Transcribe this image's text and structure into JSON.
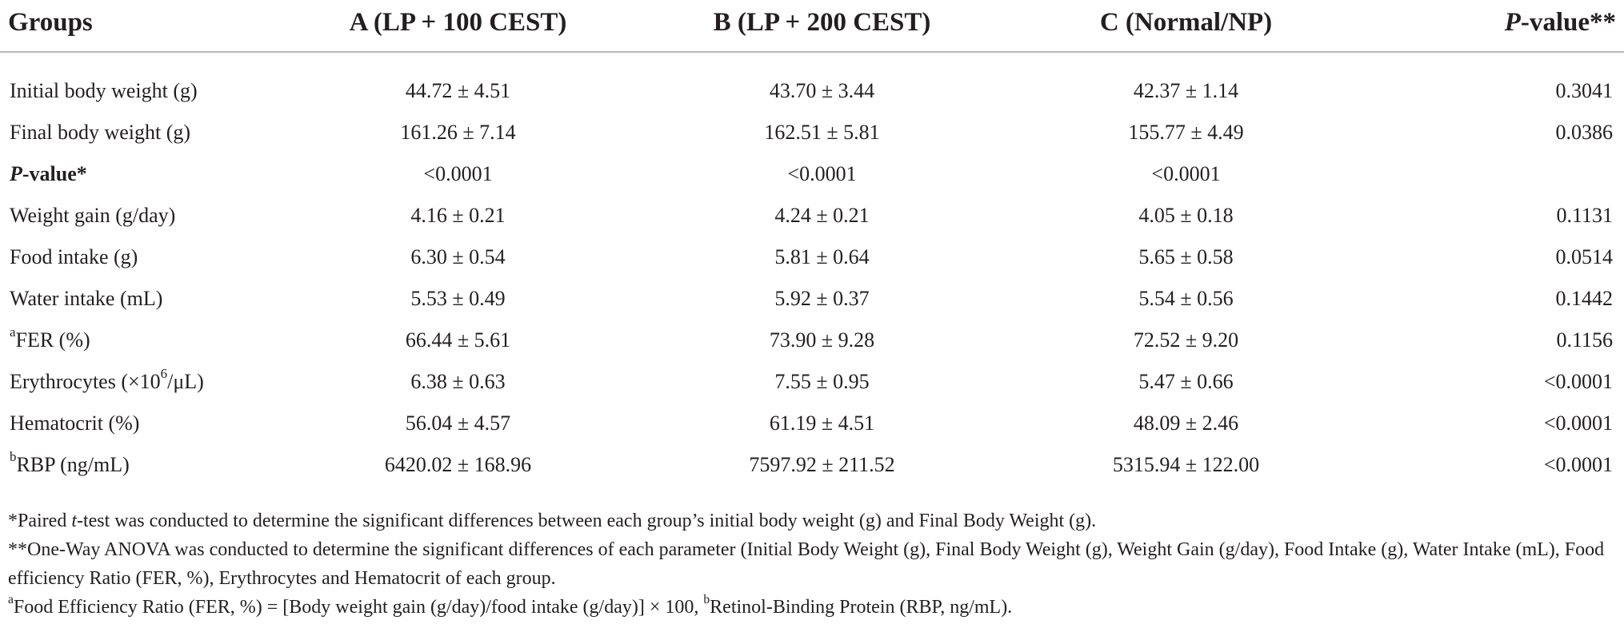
{
  "table": {
    "headers": {
      "groups": "Groups",
      "a": "A (LP + 100 CEST)",
      "b": "B (LP + 200 CEST)",
      "c": "C (Normal/NP)",
      "p_italic": "P",
      "p_rest": "-value**"
    },
    "rows": [
      {
        "label": "Initial body weight (g)",
        "a": "44.72 ± 4.51",
        "b": "43.70 ± 3.44",
        "c": "42.37 ± 1.14",
        "p": "0.3041"
      },
      {
        "label": "Final body weight (g)",
        "a": "161.26 ± 7.14",
        "b": "162.51 ± 5.81",
        "c": "155.77 ± 4.49",
        "p": "0.0386"
      },
      {
        "label_italic": "P",
        "label_rest": "-value*",
        "a": "<0.0001",
        "b": "<0.0001",
        "c": "<0.0001",
        "p": ""
      },
      {
        "label": "Weight gain (g/day)",
        "a": "4.16 ± 0.21",
        "b": "4.24 ± 0.21",
        "c": "4.05 ± 0.18",
        "p": "0.1131"
      },
      {
        "label": "Food intake (g)",
        "a": "6.30 ± 0.54",
        "b": "5.81 ± 0.64",
        "c": "5.65 ± 0.58",
        "p": "0.0514"
      },
      {
        "label": "Water intake (mL)",
        "a": "5.53 ± 0.49",
        "b": "5.92 ± 0.37",
        "c": "5.54 ± 0.56",
        "p": "0.1442"
      },
      {
        "label_sup": "a",
        "label": "FER (%)",
        "a": "66.44 ± 5.61",
        "b": "73.90 ± 9.28",
        "c": "72.52 ± 9.20",
        "p": "0.1156"
      },
      {
        "label_pre": "Erythrocytes (×10",
        "label_sup": "6",
        "label_post": "/μL)",
        "a": "6.38 ± 0.63",
        "b": "7.55 ± 0.95",
        "c": "5.47 ± 0.66",
        "p": "<0.0001"
      },
      {
        "label": "Hematocrit (%)",
        "a": "56.04 ± 4.57",
        "b": "61.19 ± 4.51",
        "c": "48.09 ± 2.46",
        "p": "<0.0001"
      },
      {
        "label_sup": "b",
        "label": "RBP (ng/mL)",
        "a": "6420.02 ± 168.96",
        "b": "7597.92 ± 211.52",
        "c": "5315.94 ± 122.00",
        "p": "<0.0001"
      }
    ]
  },
  "footnotes": {
    "n1_pre": "*Paired ",
    "n1_italic": "t",
    "n1_post": "-test was conducted to determine the significant differences between each group’s initial body weight (g) and Final Body Weight (g).",
    "n2": "**One-Way ANOVA was conducted to determine the significant differences of each parameter (Initial Body Weight (g), Final Body Weight (g), Weight Gain (g/day), Food Intake (g), Water Intake (mL), Food efficiency Ratio (FER, %), Erythrocytes and Hematocrit of each group.",
    "n3_sup_a": "a",
    "n3_text_a": "Food Efficiency Ratio (FER, %) = [Body weight gain (g/day)/food intake (g/day)] × 100, ",
    "n3_sup_b": "b",
    "n3_text_b": "Retinol-Binding Protein (RBP, ng/mL)."
  }
}
